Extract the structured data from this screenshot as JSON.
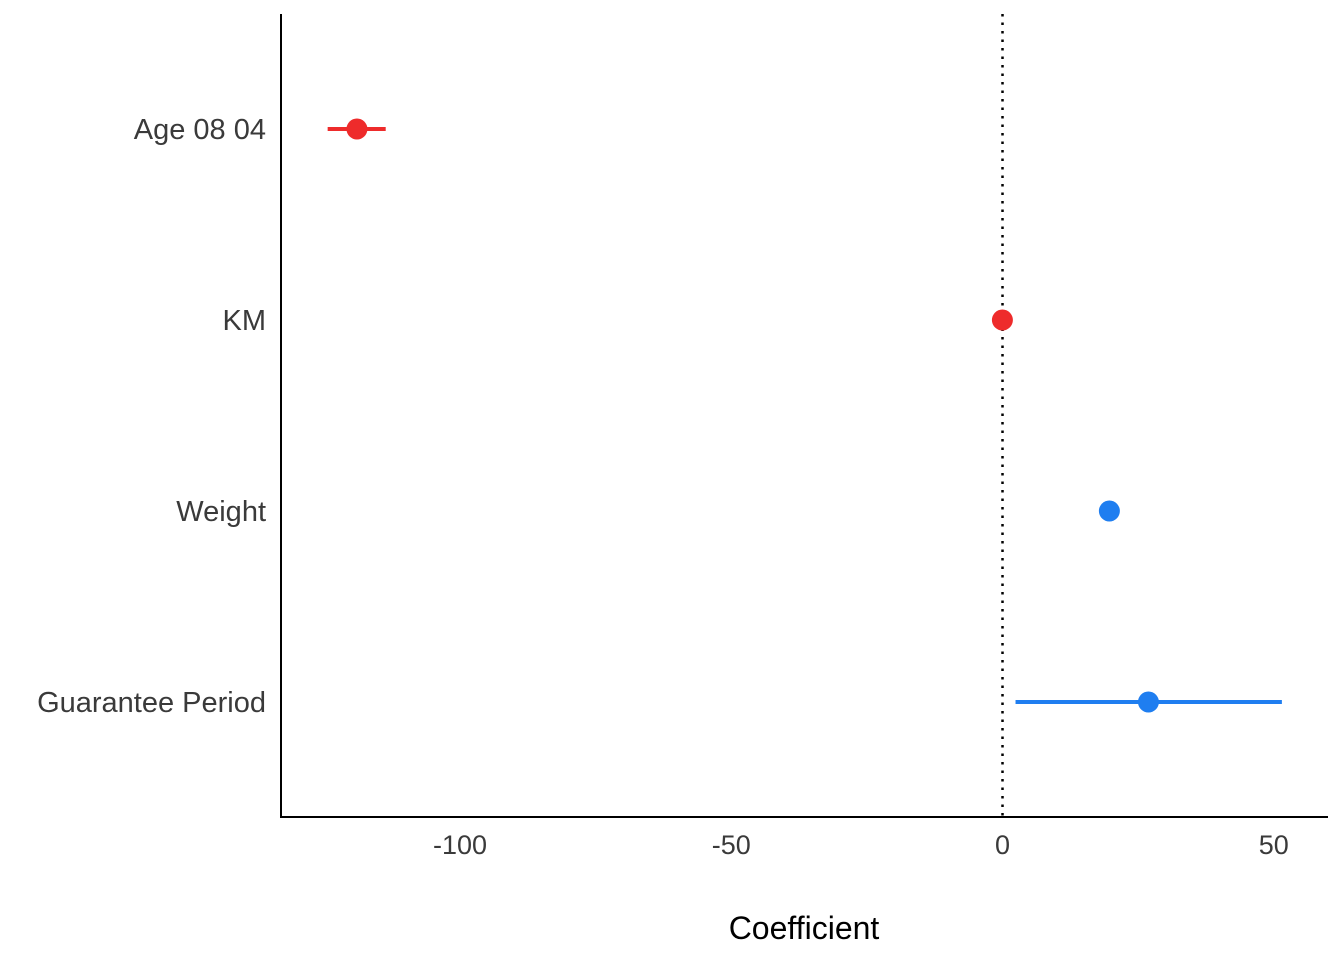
{
  "chart_data": {
    "type": "scatter",
    "subtype": "coefficient-plot",
    "title": "",
    "xlabel": "Coefficient",
    "ylabel": "",
    "xlim": [
      -133,
      60
    ],
    "xticks": [
      -100,
      -50,
      0,
      50
    ],
    "xtick_labels": [
      "-100",
      "-50",
      "0",
      "50"
    ],
    "reference_line": {
      "x": 0,
      "style": "dotted"
    },
    "grid": false,
    "categories": [
      "Age 08 04",
      "KM",
      "Weight",
      "Guarantee Period"
    ],
    "points": [
      {
        "term": "Age 08 04",
        "estimate": -119.0,
        "low": -124.4,
        "high": -113.7,
        "color": "#ee2b2b"
      },
      {
        "term": "KM",
        "estimate": -0.02,
        "low": -0.03,
        "high": -0.01,
        "color": "#ee2b2b"
      },
      {
        "term": "Weight",
        "estimate": 19.7,
        "low": 19.2,
        "high": 20.2,
        "color": "#1f7ef0"
      },
      {
        "term": "Guarantee Period",
        "estimate": 26.9,
        "low": 2.4,
        "high": 51.5,
        "color": "#1f7ef0"
      }
    ]
  }
}
